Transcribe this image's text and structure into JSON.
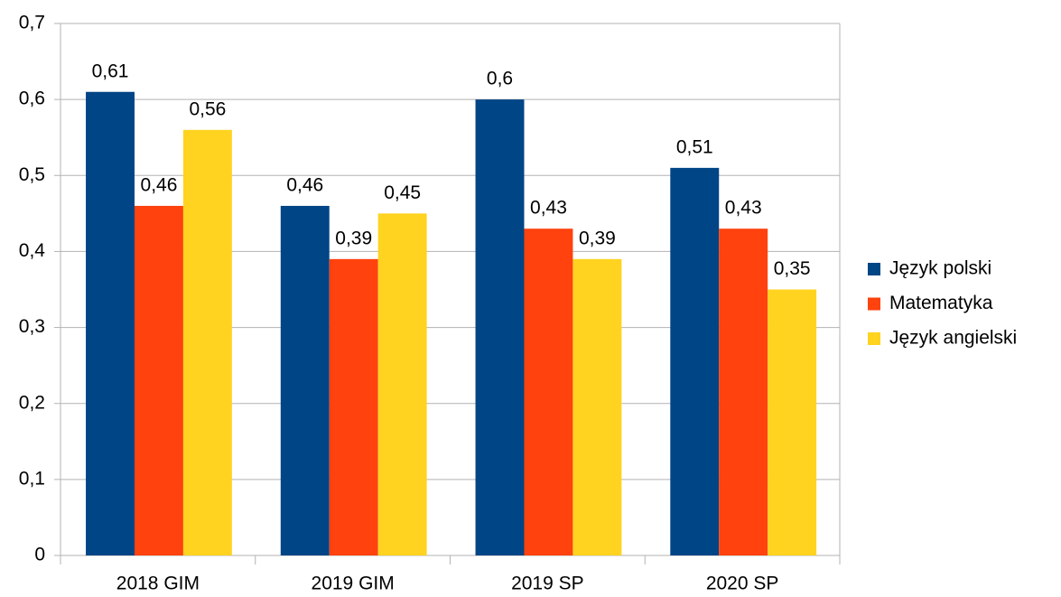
{
  "chart_data": {
    "type": "bar",
    "categories": [
      "2018 GIM",
      "2019 GIM",
      "2019 SP",
      "2020 SP"
    ],
    "series": [
      {
        "name": "Język polski",
        "color": "#004586",
        "values": [
          0.61,
          0.46,
          0.6,
          0.51
        ],
        "value_labels": [
          "0,61",
          "0,46",
          "0,6",
          "0,51"
        ]
      },
      {
        "name": "Matematyka",
        "color": "#ff420e",
        "values": [
          0.46,
          0.39,
          0.43,
          0.43
        ],
        "value_labels": [
          "0,46",
          "0,39",
          "0,43",
          "0,43"
        ]
      },
      {
        "name": "Język angielski",
        "color": "#ffd320",
        "values": [
          0.56,
          0.45,
          0.39,
          0.35
        ],
        "value_labels": [
          "0,56",
          "0,45",
          "0,39",
          "0,35"
        ]
      }
    ],
    "ylim": [
      0,
      0.7
    ],
    "yticks": [
      0,
      {
        "value": 0.1,
        "label": "0,1"
      },
      {
        "value": 0.2,
        "label": "0,2"
      },
      {
        "value": 0.3,
        "label": "0,3"
      },
      {
        "value": 0.4,
        "label": "0,4"
      },
      {
        "value": 0.5,
        "label": "0,5"
      },
      {
        "value": 0.6,
        "label": "0,6"
      },
      {
        "value": 0.7,
        "label": "0,7"
      }
    ],
    "grid": true,
    "legend": "right"
  }
}
